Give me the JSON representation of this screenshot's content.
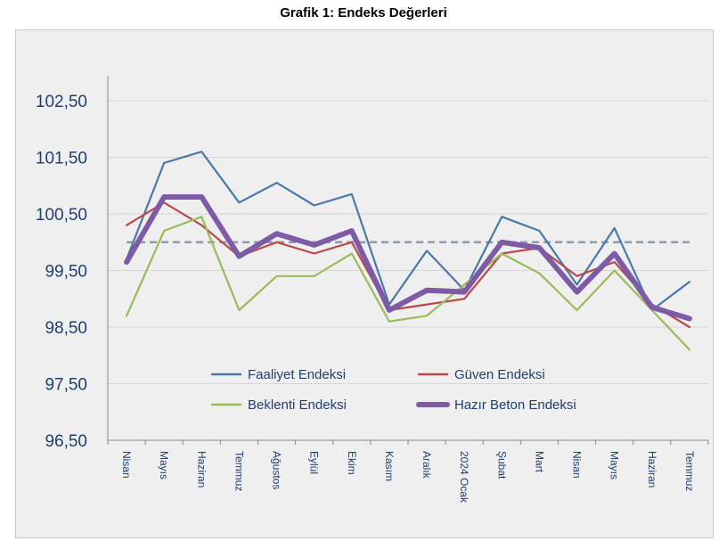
{
  "title": "Grafik 1: Endeks Değerleri",
  "chart_data": {
    "type": "line",
    "title": "Grafik 1: Endeks Değerleri",
    "categories": [
      "Nisan",
      "Mayıs",
      "Haziran",
      "Temmuz",
      "Ağustos",
      "Eylül",
      "Ekim",
      "Kasım",
      "Aralık",
      "2024 Ocak",
      "Şubat",
      "Mart",
      "Nisan",
      "Mayıs",
      "Haziran",
      "Temmuz"
    ],
    "ylim": [
      96.5,
      103.0
    ],
    "yticks": [
      "96,50",
      "97,50",
      "98,50",
      "99,50",
      "100,50",
      "101,50",
      "102,50"
    ],
    "ytick_values": [
      96.5,
      97.5,
      98.5,
      99.5,
      100.5,
      101.5,
      102.5
    ],
    "grid": true,
    "legend_position": "bottom-center-inside",
    "reference_line": {
      "value": 100,
      "style": "dashed",
      "color": "#8c9cb0"
    },
    "series": [
      {
        "name": "Faaliyet Endeksi",
        "color": "#4a78a8",
        "width": "thin",
        "values": [
          99.7,
          101.4,
          101.6,
          100.7,
          101.05,
          100.65,
          100.85,
          98.9,
          99.85,
          99.15,
          100.45,
          100.2,
          99.25,
          100.25,
          98.8,
          99.3
        ]
      },
      {
        "name": "Güven Endeksi",
        "color": "#b84a4a",
        "width": "thin",
        "values": [
          100.3,
          100.7,
          100.3,
          99.75,
          100.0,
          99.8,
          100.0,
          98.8,
          98.9,
          99.0,
          99.8,
          99.9,
          99.4,
          99.65,
          98.9,
          98.5
        ]
      },
      {
        "name": "Beklenti Endeksi",
        "color": "#9bbb59",
        "width": "thin",
        "values": [
          98.7,
          100.2,
          100.45,
          98.8,
          99.4,
          99.4,
          99.8,
          98.6,
          98.7,
          99.25,
          99.8,
          99.45,
          98.8,
          99.5,
          98.8,
          98.1
        ]
      },
      {
        "name": "Hazır Beton Endeksi",
        "color": "#7d5ba6",
        "width": "thick",
        "values": [
          99.65,
          100.8,
          100.8,
          99.75,
          100.15,
          99.95,
          100.2,
          98.8,
          99.15,
          99.12,
          100.0,
          99.9,
          99.12,
          99.8,
          98.85,
          98.65
        ]
      }
    ]
  }
}
